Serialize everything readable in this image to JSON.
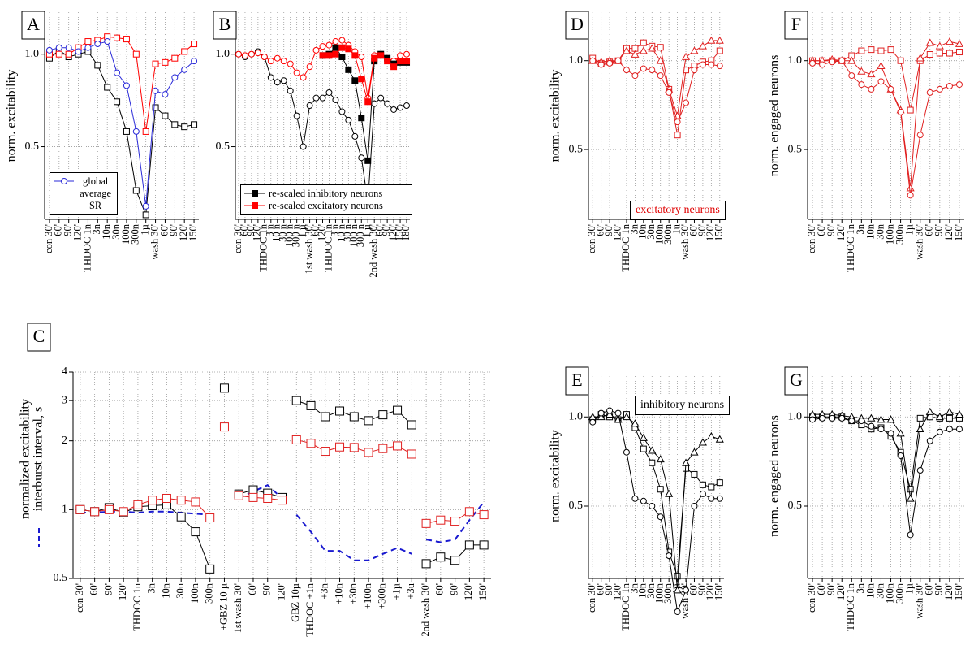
{
  "chart_data": [
    {
      "type": "line",
      "label": "A",
      "ylabel": "norm. excitability",
      "log_y": true,
      "grid": true,
      "legend": "lower left",
      "ylim": [
        0.29,
        1.37
      ],
      "yticks": [
        0.5,
        {
          "value": 1,
          "label": "1.0"
        }
      ],
      "categories": [
        "con 30'",
        "60'",
        "90'",
        "120'",
        "THDOC 1n",
        "3n",
        "10n",
        "30n",
        "100n",
        "300n",
        "1µ",
        "wash 30'",
        "60'",
        "90'",
        "120'",
        "150'"
      ],
      "series": [
        {
          "color": "#000000",
          "marker": "square",
          "filled": false,
          "values": [
            0.97,
            1.03,
            0.98,
            1.0,
            1.02,
            0.92,
            0.78,
            0.7,
            0.56,
            0.36,
            0.3,
            0.67,
            0.63,
            0.59,
            0.58,
            0.59
          ]
        },
        {
          "color": "#ff0000",
          "marker": "square",
          "filled": false,
          "values": [
            1.0,
            1.0,
            1.0,
            1.05,
            1.1,
            1.11,
            1.14,
            1.13,
            1.12,
            1.0,
            0.56,
            0.93,
            0.94,
            0.97,
            1.02,
            1.08
          ]
        },
        {
          "name": "global average SR",
          "color": "#2a2ad8",
          "marker": "circle",
          "filled": false,
          "values": [
            1.03,
            1.05,
            1.05,
            1.02,
            1.05,
            1.08,
            1.1,
            0.87,
            0.79,
            0.56,
            0.32,
            0.76,
            0.74,
            0.84,
            0.89,
            0.95
          ]
        }
      ]
    },
    {
      "type": "line",
      "label": "B",
      "log_y": true,
      "grid": true,
      "legend": "lower left",
      "ylim": [
        0.29,
        1.37
      ],
      "yticks": [
        0.5,
        {
          "value": 1,
          "label": "1.0"
        }
      ],
      "categories": [
        "con 30'",
        "60'",
        "90'",
        "120'",
        "THDOC 1n",
        "3 n",
        "10 n",
        "30 n",
        "100 n",
        "300 n",
        "1 µ",
        "1st wash 30'",
        "60'",
        "120'",
        "THDOC 1n",
        "3 n",
        "10 n",
        "30 n",
        "100 n",
        "300 n",
        "1 µ",
        "2nd wash 30'",
        "60'",
        "90'",
        "120'",
        "150'",
        "180'"
      ],
      "series": [
        {
          "color": "#000000",
          "marker": "circle",
          "filled": false,
          "values": [
            1.0,
            0.98,
            1.0,
            1.02,
            0.98,
            0.84,
            0.81,
            0.82,
            0.76,
            0.63,
            0.5,
            0.68,
            0.72,
            0.72,
            0.75,
            0.71,
            0.65,
            0.61,
            0.54,
            0.46,
            0.33,
            0.69,
            0.72,
            0.69,
            0.66,
            0.67,
            0.68
          ]
        },
        {
          "color": "#ff0000",
          "marker": "circle",
          "filled": false,
          "values": [
            1.0,
            0.99,
            1.0,
            1.01,
            0.98,
            0.95,
            0.97,
            0.95,
            0.93,
            0.87,
            0.84,
            0.91,
            1.03,
            1.06,
            1.07,
            1.1,
            1.11,
            1.07,
            1.02,
            0.98,
            0.72,
            0.99,
            1.0,
            0.97,
            0.95,
            0.99,
            1.0
          ]
        },
        {
          "name": "re-scaled inhibitory neurons",
          "color": "#000000",
          "marker": "square",
          "filled": true,
          "values": [
            null,
            null,
            null,
            null,
            null,
            null,
            null,
            null,
            null,
            null,
            null,
            null,
            null,
            0.99,
            1.0,
            1.05,
            0.98,
            0.89,
            0.82,
            0.62,
            0.45,
            0.95,
            1.0,
            0.97,
            0.93,
            0.94,
            0.94
          ]
        },
        {
          "name": "re-scaled excitatory neurons",
          "color": "#ff0000",
          "marker": "square",
          "filled": true,
          "values": [
            null,
            null,
            null,
            null,
            null,
            null,
            null,
            null,
            null,
            null,
            null,
            null,
            null,
            0.99,
            0.99,
            1.0,
            1.05,
            1.04,
            0.99,
            0.83,
            0.7,
            0.97,
            0.99,
            0.95,
            0.91,
            0.95,
            0.95
          ]
        }
      ]
    },
    {
      "type": "line",
      "label": "C",
      "ylabel": "normalized excitability",
      "ylabel2": "interburst interval, s",
      "log_y": true,
      "grid": true,
      "ylim": [
        0.5,
        4
      ],
      "yticks": [
        0.5,
        1,
        2,
        3,
        4
      ],
      "breaks": [
        10,
        11,
        15,
        24
      ],
      "categories": [
        "con 30'",
        "60'",
        "90'",
        "120'",
        "THDOC 1n",
        "3n",
        "10n",
        "30n",
        "100n",
        "300n",
        "+GBZ 10 µ",
        "1st wash 30'",
        "60'",
        "90'",
        "120'",
        "GBZ 10µ",
        "THDOC +1n",
        "+3n",
        "+10n",
        "+30n",
        "+100n",
        "+300n",
        "+1µ",
        "+3u",
        "2nd wash 30'",
        "60'",
        "90'",
        "120'",
        "150'"
      ],
      "series": [
        {
          "color": "#1a1ad0",
          "dashed": true,
          "values": [
            0.97,
            0.97,
            0.98,
            0.98,
            0.97,
            0.98,
            0.98,
            0.97,
            0.96,
            0.95,
            1.02,
            1.12,
            1.2,
            1.28,
            1.12,
            0.95,
            0.8,
            0.66,
            0.66,
            0.6,
            0.6,
            0.64,
            0.68,
            0.64,
            0.74,
            0.72,
            0.74,
            0.9,
            1.08
          ]
        },
        {
          "color": "#000000",
          "marker": "square",
          "filled": false,
          "values": [
            1.0,
            0.98,
            1.02,
            0.97,
            1.03,
            1.04,
            1.05,
            0.93,
            0.8,
            0.55,
            3.4,
            1.17,
            1.22,
            1.18,
            1.13,
            3.0,
            2.85,
            2.55,
            2.7,
            2.55,
            2.45,
            2.6,
            2.72,
            2.35,
            0.58,
            0.62,
            0.6,
            0.7,
            0.7
          ]
        },
        {
          "color": "#e02020",
          "marker": "square",
          "filled": false,
          "values": [
            1.0,
            0.98,
            1.0,
            0.98,
            1.05,
            1.1,
            1.12,
            1.1,
            1.08,
            0.92,
            2.3,
            1.15,
            1.13,
            1.12,
            1.1,
            2.02,
            1.95,
            1.8,
            1.88,
            1.87,
            1.78,
            1.85,
            1.9,
            1.75,
            0.87,
            0.9,
            0.89,
            0.98,
            0.95
          ]
        }
      ]
    },
    {
      "type": "line",
      "label": "D",
      "ylabel": "norm. excitability",
      "log_y": true,
      "grid": true,
      "annotation": "excitatory neurons",
      "annotation_color": "#e00000",
      "ylim": [
        0.29,
        1.46
      ],
      "yticks": [
        0.5,
        {
          "value": 1,
          "label": "1.0"
        }
      ],
      "categories": [
        "con 30'",
        "60'",
        "90'",
        "120'",
        "THDOC 1n",
        "3n",
        "10n",
        "30n",
        "100n",
        "300n",
        "1u",
        "wash 30'",
        "60'",
        "90'",
        "120'",
        "150'"
      ],
      "series": [
        {
          "color": "#e02020",
          "marker": "square",
          "filled": false,
          "values": [
            1.02,
            0.98,
            0.99,
            1.0,
            1.1,
            1.1,
            1.15,
            1.12,
            1.11,
            0.8,
            0.56,
            0.93,
            0.96,
            0.99,
            1.0,
            1.08
          ]
        },
        {
          "color": "#e02020",
          "marker": "triangle",
          "filled": false,
          "values": [
            1.0,
            0.99,
            1.0,
            1.0,
            1.08,
            1.05,
            1.08,
            1.1,
            1.0,
            0.8,
            0.65,
            1.03,
            1.08,
            1.12,
            1.17,
            1.17
          ]
        },
        {
          "color": "#e02020",
          "marker": "circle",
          "filled": false,
          "values": [
            1.0,
            0.97,
            0.98,
            1.0,
            0.93,
            0.89,
            0.94,
            0.93,
            0.89,
            0.78,
            0.62,
            0.72,
            0.93,
            0.97,
            0.97,
            0.96
          ]
        }
      ]
    },
    {
      "type": "line",
      "label": "E",
      "ylabel": "norm. excitability",
      "log_y": true,
      "grid": true,
      "annotation": "inhibitory neurons",
      "annotation_color": "#000000",
      "ylim": [
        0.285,
        1.4
      ],
      "yticks": [
        0.5,
        {
          "value": 1,
          "label": "1.0"
        }
      ],
      "categories": [
        "con 30'",
        "60'",
        "90'",
        "120'",
        "THDOC 1n",
        "3n",
        "10n",
        "30n",
        "100n",
        "300n",
        "1µ",
        "wash 30'",
        "60'",
        "90'",
        "120'",
        "150'"
      ],
      "series": [
        {
          "color": "#000000",
          "marker": "square",
          "filled": false,
          "values": [
            0.98,
            1.02,
            1.0,
            0.98,
            1.02,
            0.92,
            0.78,
            0.7,
            0.57,
            0.35,
            0.29,
            0.67,
            0.64,
            0.59,
            0.58,
            0.6
          ]
        },
        {
          "color": "#000000",
          "marker": "triangle",
          "filled": false,
          "values": [
            1.0,
            1.0,
            1.02,
            0.98,
            1.0,
            0.95,
            0.85,
            0.77,
            0.72,
            0.55,
            0.26,
            0.7,
            0.76,
            0.82,
            0.86,
            0.84
          ]
        },
        {
          "color": "#000000",
          "marker": "circle",
          "filled": false,
          "values": [
            0.96,
            1.03,
            1.05,
            1.03,
            0.76,
            0.53,
            0.52,
            0.5,
            0.46,
            0.34,
            0.22,
            0.26,
            0.5,
            0.55,
            0.53,
            0.53
          ]
        }
      ]
    },
    {
      "type": "line",
      "label": "F",
      "ylabel": "norm. engaged neurons",
      "log_y": true,
      "grid": true,
      "ylim": [
        0.29,
        1.46
      ],
      "yticks": [
        0.5,
        {
          "value": 1,
          "label": "1.0"
        }
      ],
      "categories": [
        "con 30'",
        "60'",
        "90'",
        "120'",
        "THDOC 1n",
        "3n",
        "10n",
        "30n",
        "100n",
        "300n",
        "1µ",
        "wash 30'",
        "60'",
        "90'",
        "120'",
        "150'"
      ],
      "series": [
        {
          "color": "#e02020",
          "marker": "square",
          "filled": false,
          "values": [
            1.0,
            1.0,
            1.0,
            1.0,
            1.04,
            1.08,
            1.09,
            1.08,
            1.09,
            1.0,
            0.68,
            1.0,
            1.05,
            1.06,
            1.06,
            1.07
          ]
        },
        {
          "color": "#e02020",
          "marker": "triangle",
          "filled": false,
          "values": [
            1.0,
            1.0,
            1.01,
            1.0,
            1.0,
            0.92,
            0.9,
            0.96,
            0.8,
            0.68,
            0.37,
            1.02,
            1.15,
            1.12,
            1.16,
            1.14
          ]
        },
        {
          "color": "#e02020",
          "marker": "circle",
          "filled": false,
          "values": [
            0.98,
            0.97,
            0.99,
            1.0,
            0.89,
            0.83,
            0.8,
            0.85,
            0.8,
            0.67,
            0.35,
            0.56,
            0.78,
            0.8,
            0.82,
            0.83
          ]
        }
      ]
    },
    {
      "type": "line",
      "label": "G",
      "ylabel": "norm. engaged neurons",
      "log_y": true,
      "grid": true,
      "ylim": [
        0.285,
        1.4
      ],
      "yticks": [
        0.5,
        {
          "value": 1,
          "label": "1.0"
        }
      ],
      "categories": [
        "con 30'",
        "60'",
        "90'",
        "120'",
        "THDOC 1n",
        "3n",
        "10n",
        "30n",
        "100n",
        "300n",
        "1µ",
        "wash 30'",
        "60'",
        "90'",
        "120'",
        "150'"
      ],
      "series": [
        {
          "color": "#000000",
          "marker": "square",
          "filled": false,
          "values": [
            1.0,
            1.0,
            1.0,
            1.0,
            0.97,
            0.94,
            0.91,
            0.92,
            0.86,
            0.76,
            0.57,
            0.99,
            1.0,
            0.99,
            0.99,
            0.99
          ]
        },
        {
          "color": "#000000",
          "marker": "triangle",
          "filled": false,
          "values": [
            1.02,
            1.02,
            1.02,
            1.01,
            1.0,
            0.99,
            0.99,
            0.98,
            0.98,
            0.88,
            0.53,
            0.91,
            1.04,
            1.0,
            1.04,
            1.02
          ]
        },
        {
          "color": "#000000",
          "marker": "circle",
          "filled": false,
          "values": [
            0.98,
            0.99,
            0.99,
            0.99,
            0.97,
            0.97,
            0.93,
            0.91,
            0.88,
            0.74,
            0.4,
            0.66,
            0.83,
            0.89,
            0.91,
            0.91
          ]
        }
      ]
    }
  ]
}
